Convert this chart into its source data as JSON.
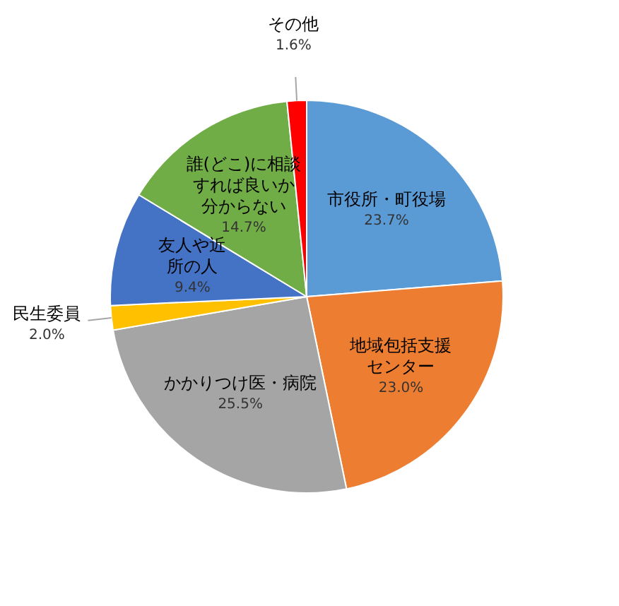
{
  "chart_data": {
    "type": "pie",
    "categories": [
      "市役所・町役場",
      "地域包括支援センター",
      "かかりつけ医・病院",
      "民生委員",
      "友人や近所の人",
      "誰(どこ)に相談すれば良いか分からない",
      "その他"
    ],
    "values": [
      23.7,
      23.0,
      25.5,
      2.0,
      9.4,
      14.7,
      1.6
    ],
    "value_labels": [
      "23.7%",
      "23.0%",
      "25.5%",
      "2.0%",
      "9.4%",
      "14.7%",
      "1.6%"
    ],
    "colors": [
      "#5b9bd5",
      "#ed7d31",
      "#a5a5a5",
      "#ffc000",
      "#4472c4",
      "#70ad47",
      "#ff0000"
    ]
  }
}
